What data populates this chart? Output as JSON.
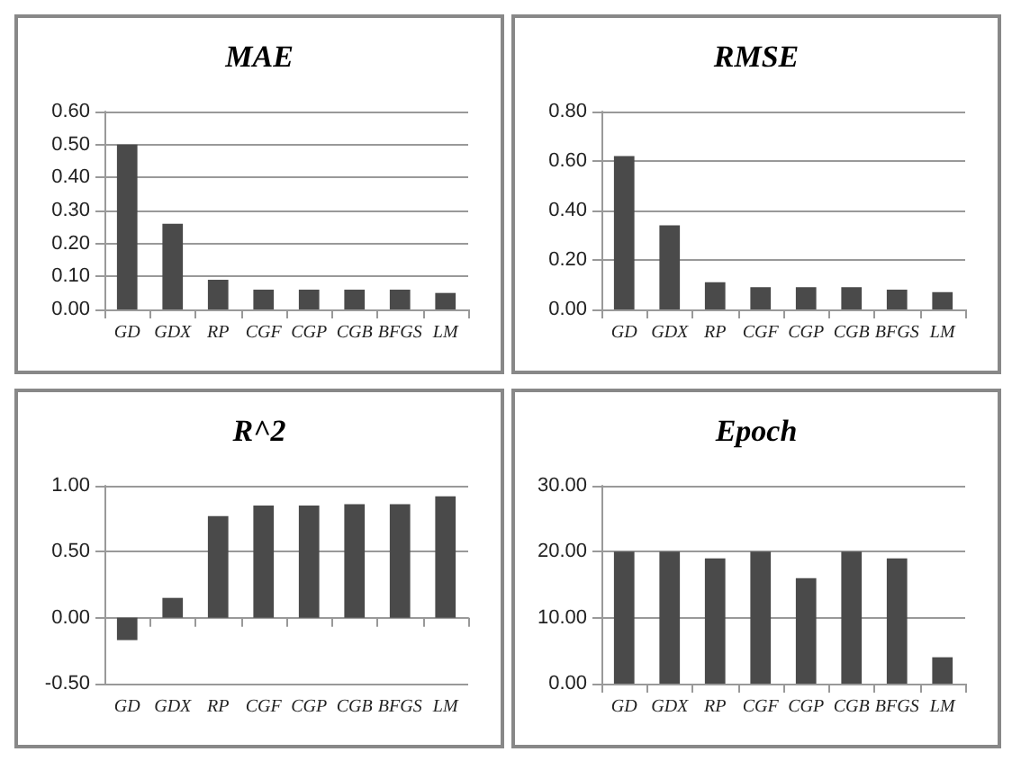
{
  "chart_data": [
    {
      "type": "bar",
      "title": "MAE",
      "categories": [
        "GD",
        "GDX",
        "RP",
        "CGF",
        "CGP",
        "CGB",
        "BFGS",
        "LM"
      ],
      "values": [
        0.5,
        0.26,
        0.09,
        0.06,
        0.06,
        0.06,
        0.06,
        0.05
      ],
      "color": "#4a4a4a",
      "ylim": [
        0,
        0.6
      ],
      "yticks": [
        {
          "value": 0,
          "label": "0.00"
        },
        {
          "value": 0.1,
          "label": "0.10"
        },
        {
          "value": 0.2,
          "label": "0.20"
        },
        {
          "value": 0.3,
          "label": "0.30"
        },
        {
          "value": 0.4,
          "label": "0.40"
        },
        {
          "value": 0.5,
          "label": "0.50"
        },
        {
          "value": 0.6,
          "label": "0.60"
        }
      ],
      "grid": "y"
    },
    {
      "type": "bar",
      "title": "RMSE",
      "categories": [
        "GD",
        "GDX",
        "RP",
        "CGF",
        "CGP",
        "CGB",
        "BFGS",
        "LM"
      ],
      "values": [
        0.62,
        0.34,
        0.11,
        0.09,
        0.09,
        0.09,
        0.08,
        0.07
      ],
      "color": "#4a4a4a",
      "ylim": [
        0,
        0.8
      ],
      "yticks": [
        {
          "value": 0,
          "label": "0.00"
        },
        {
          "value": 0.2,
          "label": "0.20"
        },
        {
          "value": 0.4,
          "label": "0.40"
        },
        {
          "value": 0.6,
          "label": "0.60"
        },
        {
          "value": 0.8,
          "label": "0.80"
        }
      ],
      "grid": "y"
    },
    {
      "type": "bar",
      "title": "R^2",
      "categories": [
        "GD",
        "GDX",
        "RP",
        "CGF",
        "CGP",
        "CGB",
        "BFGS",
        "LM"
      ],
      "values": [
        -0.17,
        0.15,
        0.77,
        0.85,
        0.85,
        0.86,
        0.86,
        0.92
      ],
      "color": "#4a4a4a",
      "ylim": [
        -0.5,
        1
      ],
      "yticks": [
        {
          "value": -0.5,
          "label": "-0.50"
        },
        {
          "value": 0,
          "label": "0.00"
        },
        {
          "value": 0.5,
          "label": "0.50"
        },
        {
          "value": 1,
          "label": "1.00"
        }
      ],
      "grid": "y"
    },
    {
      "type": "bar",
      "title": "Epoch",
      "categories": [
        "GD",
        "GDX",
        "RP",
        "CGF",
        "CGP",
        "CGB",
        "BFGS",
        "LM"
      ],
      "values": [
        20,
        20,
        19,
        20,
        16,
        20,
        19,
        4
      ],
      "color": "#4a4a4a",
      "ylim": [
        0,
        30
      ],
      "yticks": [
        {
          "value": 0,
          "label": "0.00"
        },
        {
          "value": 10,
          "label": "10.00"
        },
        {
          "value": 20,
          "label": "20.00"
        },
        {
          "value": 30,
          "label": "30.00"
        }
      ],
      "grid": "y"
    }
  ]
}
